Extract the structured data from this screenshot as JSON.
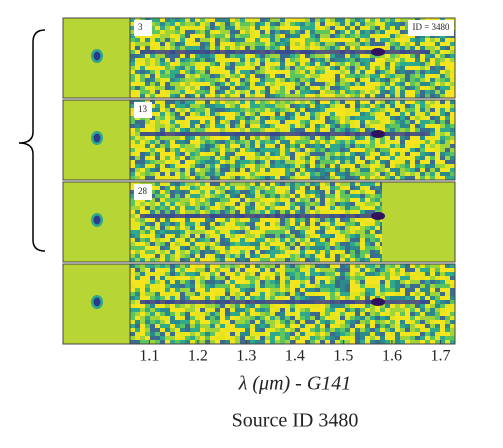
{
  "chart_data": {
    "type": "spectra",
    "panel_labels": [
      "3",
      "13",
      "28"
    ],
    "id_label": "ID = 3480",
    "xlabel": "λ (μm) - G141",
    "caption": "Source ID 3480",
    "xlim": [
      1.06,
      1.73
    ],
    "xticks": [
      1.1,
      1.2,
      1.3,
      1.4,
      1.5,
      1.6,
      1.7
    ]
  }
}
